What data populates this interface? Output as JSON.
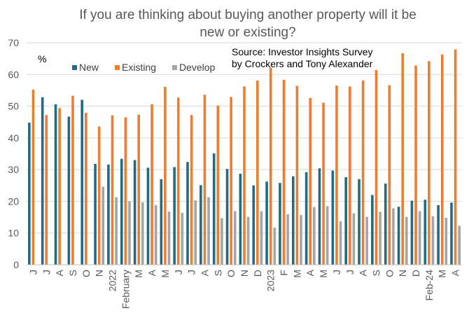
{
  "chart_data": {
    "type": "bar",
    "title_lines": [
      "If you are thinking about buying another property will it be",
      "new or existing?"
    ],
    "ylabel": "%",
    "ylim": [
      0,
      70
    ],
    "yticks": [
      0,
      10,
      20,
      30,
      40,
      50,
      60,
      70
    ],
    "grid": true,
    "legend_position": "top-left",
    "source_lines": [
      "Source: Investor Insights Survey",
      "by Crockers and Tony Alexander"
    ],
    "categories": [
      "J",
      "J",
      "A",
      "S",
      "O",
      "N",
      "2022",
      "February",
      "M",
      "A",
      "M",
      "J",
      "J",
      "A",
      "S",
      "O",
      "N",
      "D",
      "2023",
      "F",
      "M",
      "A",
      "M",
      "J",
      "J",
      "A",
      "S",
      "O",
      "N",
      "D",
      "Feb-24",
      "M",
      "A"
    ],
    "series": [
      {
        "name": "New",
        "color": "#216b84",
        "values": [
          44.8,
          52.8,
          50.6,
          46.7,
          52.0,
          31.8,
          31.6,
          33.4,
          33.0,
          30.6,
          27.0,
          30.8,
          32.4,
          25.1,
          35.1,
          30.2,
          28.7,
          25.0,
          26.2,
          25.8,
          27.9,
          29.2,
          30.4,
          29.7,
          27.6,
          27.0,
          22.0,
          25.6,
          18.3,
          20.2,
          20.5,
          18.8,
          19.6
        ]
      },
      {
        "name": "Existing",
        "color": "#ed7d31",
        "values": [
          55.2,
          47.2,
          49.4,
          53.3,
          47.9,
          43.6,
          47.1,
          46.5,
          47.3,
          50.6,
          56.1,
          52.7,
          47.2,
          53.6,
          50.2,
          52.9,
          56.2,
          58.1,
          62.2,
          58.3,
          56.4,
          52.6,
          51.1,
          56.5,
          56.2,
          58.1,
          61.4,
          56.6,
          66.7,
          62.8,
          64.2,
          66.3,
          67.9
        ]
      },
      {
        "name": "Develop",
        "color": "#a5a5a5",
        "values": [
          null,
          null,
          null,
          null,
          null,
          24.6,
          21.3,
          20.0,
          19.7,
          18.8,
          16.8,
          16.4,
          20.3,
          21.3,
          14.7,
          16.9,
          15.1,
          16.9,
          11.7,
          15.9,
          15.7,
          18.2,
          18.5,
          13.7,
          16.2,
          15.1,
          16.7,
          17.8,
          15.1,
          16.9,
          15.3,
          14.8,
          12.3
        ]
      }
    ]
  }
}
